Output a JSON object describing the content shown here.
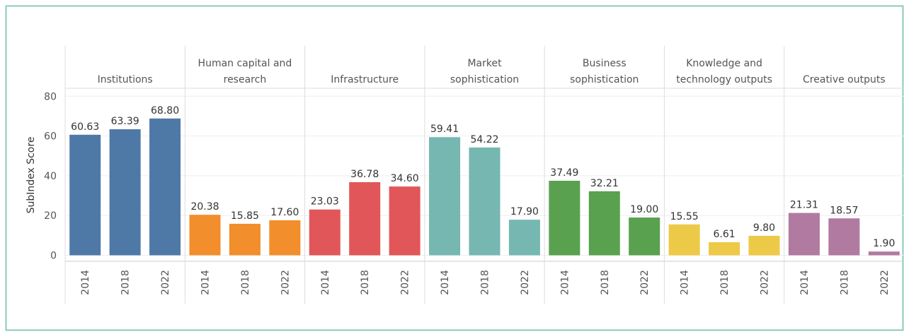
{
  "chart_data": {
    "type": "bar",
    "y_label": "SubIndex Score",
    "ylim": [
      -3,
      84
    ],
    "yticks": [
      0,
      20,
      40,
      60,
      80
    ],
    "grid": true,
    "groups": [
      {
        "label": [
          "Institutions"
        ],
        "color": "#4e79a7",
        "categories": [
          "2014",
          "2018",
          "2022"
        ],
        "values": [
          60.63,
          63.39,
          68.8
        ],
        "value_labels": [
          "60.63",
          "63.39",
          "68.80"
        ]
      },
      {
        "label": [
          "Human capital and",
          "research"
        ],
        "color": "#f28e2b",
        "categories": [
          "2014",
          "2018",
          "2022"
        ],
        "values": [
          20.38,
          15.85,
          17.6
        ],
        "value_labels": [
          "20.38",
          "15.85",
          "17.60"
        ]
      },
      {
        "label": [
          "Infrastructure"
        ],
        "color": "#e15759",
        "categories": [
          "2014",
          "2018",
          "2022"
        ],
        "values": [
          23.03,
          36.78,
          34.6
        ],
        "value_labels": [
          "23.03",
          "36.78",
          "34.60"
        ]
      },
      {
        "label": [
          "Market",
          "sophistication"
        ],
        "color": "#76b7b2",
        "categories": [
          "2014",
          "2018",
          "2022"
        ],
        "values": [
          59.41,
          54.22,
          17.9
        ],
        "value_labels": [
          "59.41",
          "54.22",
          "17.90"
        ]
      },
      {
        "label": [
          "Business",
          "sophistication"
        ],
        "color": "#59a14f",
        "categories": [
          "2014",
          "2018",
          "2022"
        ],
        "values": [
          37.49,
          32.21,
          19.0
        ],
        "value_labels": [
          "37.49",
          "32.21",
          "19.00"
        ]
      },
      {
        "label": [
          "Knowledge and",
          "technology outputs"
        ],
        "color": "#edc948",
        "categories": [
          "2014",
          "2018",
          "2022"
        ],
        "values": [
          15.55,
          6.61,
          9.8
        ],
        "value_labels": [
          "15.55",
          "6.61",
          "9.80"
        ]
      },
      {
        "label": [
          "Creative outputs"
        ],
        "color": "#b07aa1",
        "categories": [
          "2014",
          "2018",
          "2022"
        ],
        "values": [
          21.31,
          18.57,
          1.9
        ],
        "value_labels": [
          "21.31",
          "18.57",
          "1.90"
        ]
      }
    ]
  }
}
